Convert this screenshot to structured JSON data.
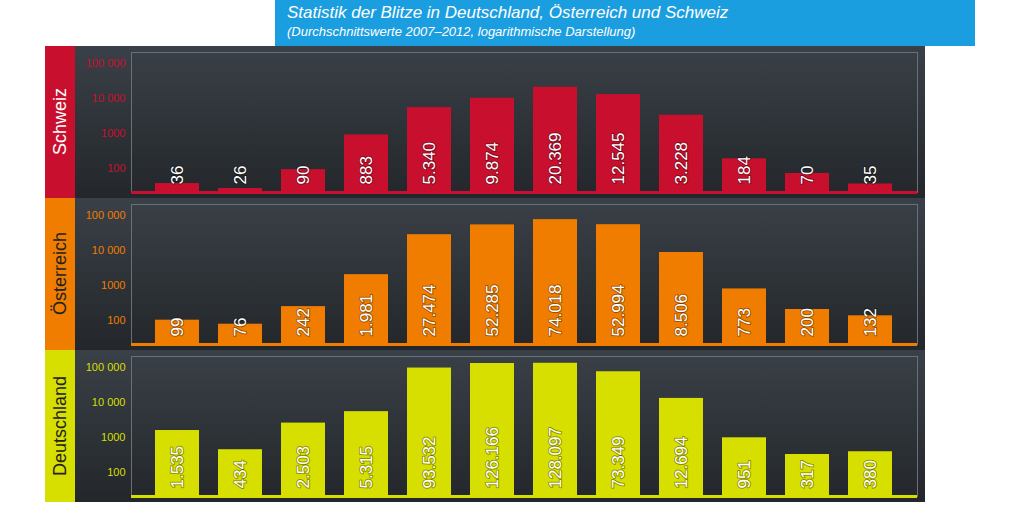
{
  "chart_data": {
    "type": "bar",
    "title": "Statistik der Blitze in Deutschland, Österreich und Schweiz",
    "subtitle": "(Durchschnittswerte 2007–2012, logarithmische Darstellung)",
    "categories": [
      null,
      null,
      null,
      null,
      null,
      null,
      null,
      null,
      null,
      null,
      null,
      null
    ],
    "series": [
      {
        "name": "Schweiz",
        "color": "#c8102e",
        "values": [
          36,
          26,
          90,
          883,
          5340,
          9874,
          20369,
          12545,
          3228,
          184,
          70,
          35
        ],
        "value_labels": [
          "36",
          "26",
          "90",
          "883",
          "5.340",
          "9.874",
          "20.369",
          "12.545",
          "3.228",
          "184",
          "70",
          "35"
        ]
      },
      {
        "name": "Österreich",
        "color": "#f07d00",
        "values": [
          99,
          76,
          242,
          1981,
          27474,
          52285,
          74018,
          52994,
          8506,
          773,
          200,
          132
        ],
        "value_labels": [
          "99",
          "76",
          "242",
          "1.981",
          "27.474",
          "52.285",
          "74.018",
          "52.994",
          "8.506",
          "773",
          "200",
          "132"
        ]
      },
      {
        "name": "Deutschland",
        "color": "#d7df00",
        "values": [
          1535,
          434,
          2503,
          5315,
          93532,
          126166,
          128097,
          73349,
          12694,
          951,
          317,
          380
        ],
        "value_labels": [
          "1.535",
          "434",
          "2.503",
          "5.315",
          "93.532",
          "126.166",
          "128.097",
          "73.349",
          "12.694",
          "951",
          "317",
          "380"
        ]
      }
    ],
    "log": "y",
    "ylim": [
      20,
      200000
    ],
    "yticks": [
      100,
      1000,
      {
        "value": 10000,
        "label": "10 000"
      },
      {
        "value": 100000,
        "label": "100 000"
      }
    ],
    "grid": false,
    "data_labels": true,
    "tick_labels": "y"
  }
}
